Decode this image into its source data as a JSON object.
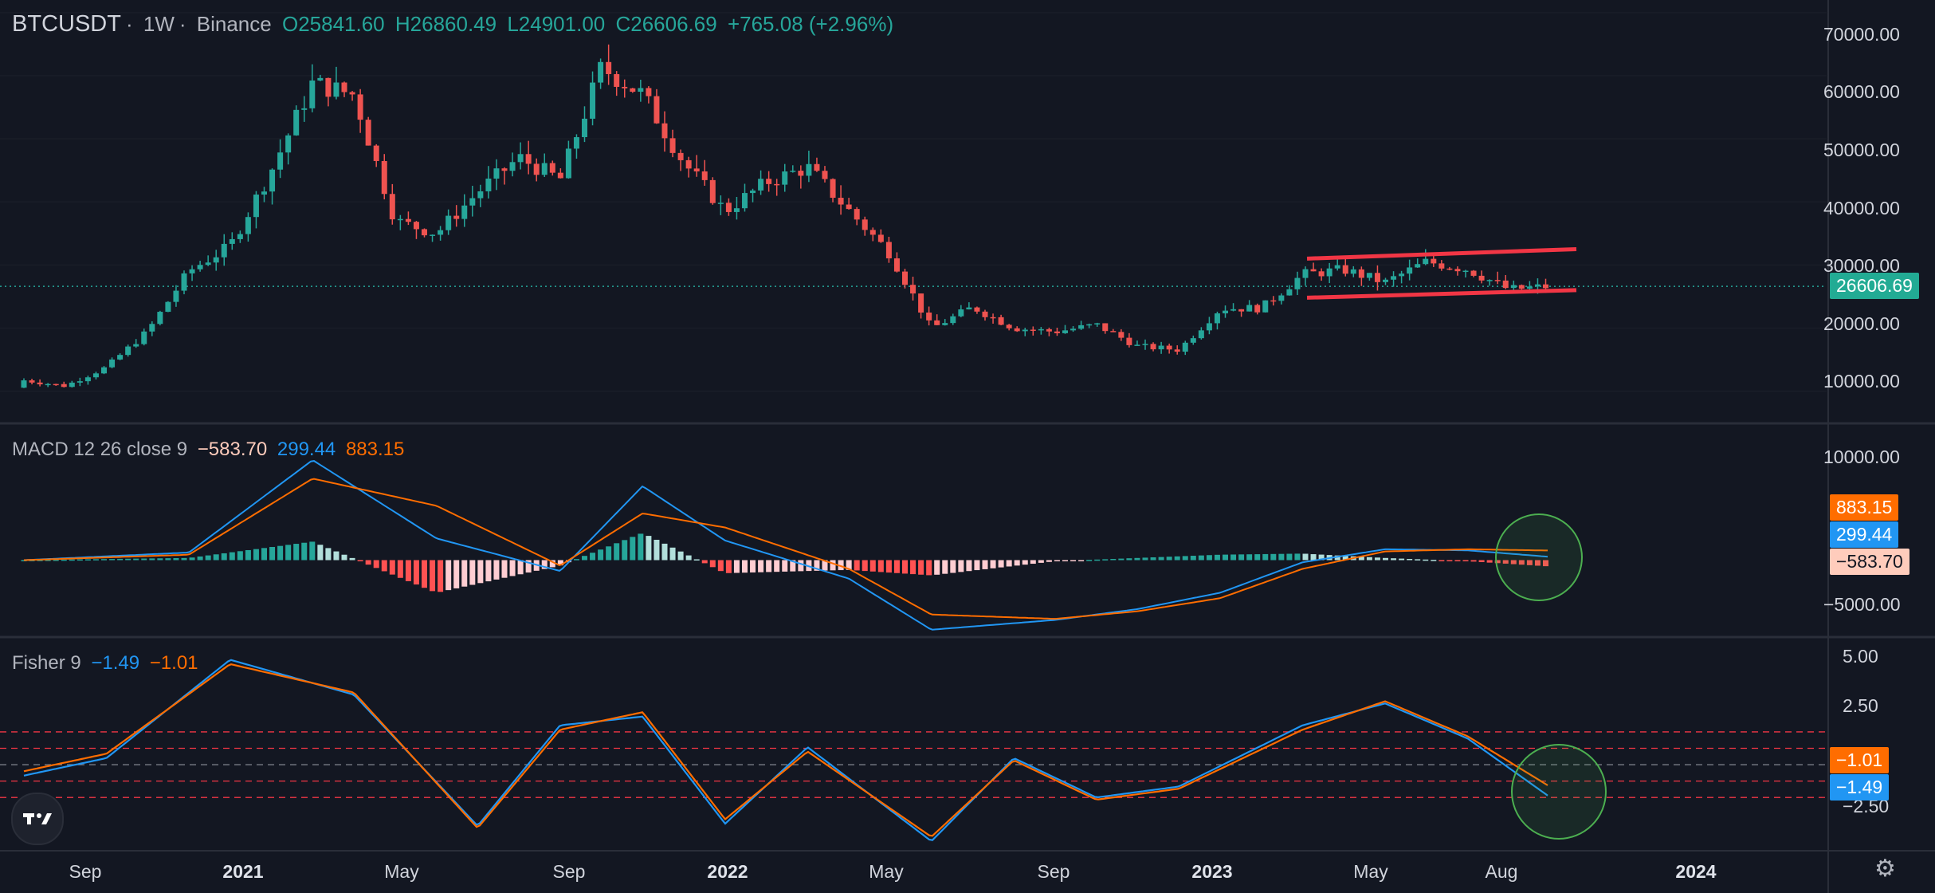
{
  "header": {
    "symbol": "BTCUSDT",
    "sep1": "·",
    "interval": "1W",
    "sep2": "·",
    "exchange": "Binance",
    "open": "O25841.60",
    "high": "H26860.49",
    "low": "L24901.00",
    "close": "C26606.69",
    "change": "+765.08 (+2.96%)"
  },
  "macd_legend": {
    "label": "MACD 12 26 close 9",
    "hist": "−583.70",
    "macd": "299.44",
    "signal": "883.15"
  },
  "fisher_legend": {
    "label": "Fisher 9",
    "fisher": "−1.49",
    "trigger": "−1.01"
  },
  "price_axis": [
    "70000.00",
    "60000.00",
    "50000.00",
    "40000.00",
    "30000.00",
    "20000.00",
    "10000.00"
  ],
  "macd_axis": [
    "10000.00",
    "−5000.00"
  ],
  "fisher_axis": [
    "5.00",
    "2.50",
    "−2.50"
  ],
  "badges": {
    "price": "26606.69",
    "macd_signal": "883.15",
    "macd_line": "299.44",
    "macd_hist": "−583.70",
    "fisher_trigger": "−1.01",
    "fisher_line": "−1.49"
  },
  "time_axis": [
    "Sep",
    "2021",
    "May",
    "Sep",
    "2022",
    "May",
    "Sep",
    "2023",
    "May",
    "Aug",
    "2024"
  ],
  "colors": {
    "background": "#131722",
    "up": "#26a69a",
    "down": "#ef5350",
    "macd": "#2962ff",
    "signal": "#ff6d00",
    "fisher": "#2196f3",
    "trigger": "#ff6d00",
    "channel": "#f23645",
    "highlight": "#4caf50"
  },
  "icons": {
    "logo": "tradingview-logo-icon",
    "settings": "gear-icon"
  },
  "chart_data": [
    {
      "type": "candlestick",
      "title": "BTCUSDT · 1W · Binance",
      "x": [
        "2020-08",
        "2020-09",
        "2020-10",
        "2020-11",
        "2020-12",
        "2021-01",
        "2021-02",
        "2021-03",
        "2021-04",
        "2021-05",
        "2021-06",
        "2021-07",
        "2021-08",
        "2021-09",
        "2021-10",
        "2021-11",
        "2021-12",
        "2022-01",
        "2022-02",
        "2022-03",
        "2022-04",
        "2022-05",
        "2022-06",
        "2022-07",
        "2022-08",
        "2022-09",
        "2022-10",
        "2022-11",
        "2022-12",
        "2023-01",
        "2023-02",
        "2023-03",
        "2023-04",
        "2023-05",
        "2023-06",
        "2023-07",
        "2023-08",
        "2023-09"
      ],
      "close": [
        11700,
        10800,
        13800,
        19500,
        29000,
        33000,
        45000,
        58800,
        57000,
        37000,
        35000,
        41500,
        47000,
        43500,
        61300,
        57000,
        46200,
        38500,
        43100,
        45500,
        38600,
        31800,
        19900,
        23300,
        20000,
        19400,
        20500,
        17100,
        16550,
        23100,
        23150,
        28500,
        29250,
        27200,
        30500,
        29300,
        26100,
        26606.69
      ],
      "channel": {
        "upper": [
          31000,
          32500
        ],
        "lower": [
          24800,
          26000
        ]
      },
      "last_price": 26606.69,
      "ylim": [
        5000,
        72000
      ]
    },
    {
      "type": "line",
      "title": "MACD 12 26 close 9",
      "x": [
        "2020-08",
        "2020-12",
        "2021-03",
        "2021-06",
        "2021-09",
        "2021-11",
        "2022-01",
        "2022-04",
        "2022-06",
        "2022-09",
        "2022-11",
        "2023-01",
        "2023-03",
        "2023-05",
        "2023-07",
        "2023-09"
      ],
      "series": [
        {
          "name": "MACD",
          "values": [
            0,
            700,
            9200,
            2000,
            -1000,
            6800,
            1800,
            -1700,
            -6400,
            -5500,
            -4500,
            -3000,
            -200,
            1000,
            900,
            299.44
          ]
        },
        {
          "name": "Signal",
          "values": [
            0,
            500,
            7500,
            5000,
            -500,
            4300,
            3000,
            -800,
            -5000,
            -5400,
            -4700,
            -3500,
            -800,
            800,
            1000,
            883.15
          ]
        }
      ],
      "histogram_last": -583.7,
      "ylim": [
        -7000,
        12500
      ]
    },
    {
      "type": "line",
      "title": "Fisher 9",
      "x": [
        "2020-08",
        "2020-10",
        "2021-01",
        "2021-04",
        "2021-07",
        "2021-09",
        "2021-11",
        "2022-01",
        "2022-03",
        "2022-06",
        "2022-08",
        "2022-10",
        "2022-12",
        "2023-03",
        "2023-05",
        "2023-07",
        "2023-09"
      ],
      "series": [
        {
          "name": "Fisher",
          "values": [
            -0.5,
            0.3,
            4.8,
            3.2,
            -2.8,
            1.8,
            2.2,
            -2.7,
            0.8,
            -3.5,
            0.3,
            -1.5,
            -1.0,
            1.8,
            2.8,
            1.2,
            -1.49
          ]
        },
        {
          "name": "Trigger",
          "values": [
            -0.3,
            0.5,
            4.6,
            3.3,
            -2.9,
            1.6,
            2.4,
            -2.5,
            0.6,
            -3.3,
            0.2,
            -1.6,
            -1.1,
            1.6,
            2.9,
            1.3,
            -1.01
          ]
        }
      ],
      "levels": [
        1.5,
        0.75,
        0,
        -0.75,
        -1.5
      ],
      "ylim": [
        -3.9,
        5.8
      ]
    }
  ]
}
